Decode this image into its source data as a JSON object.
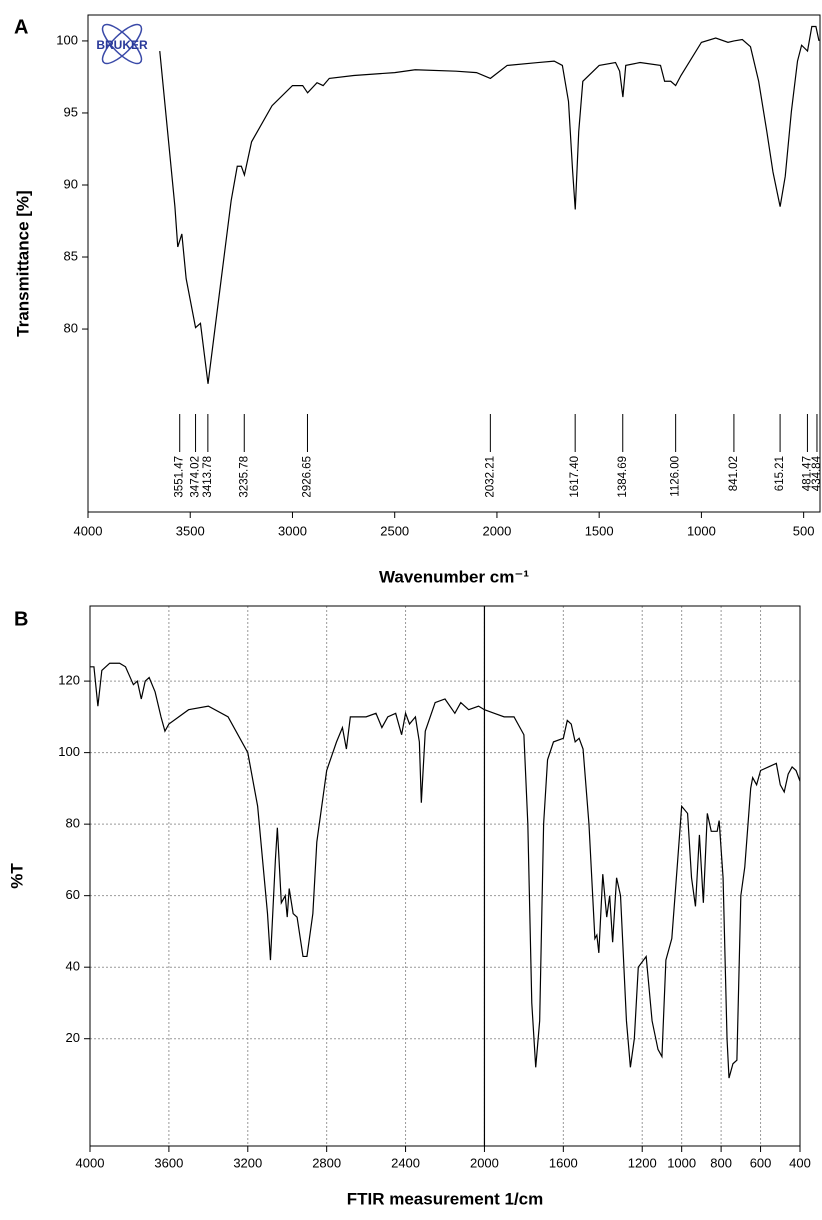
{
  "chart_data": [
    {
      "type": "line",
      "panel_label": "A",
      "logo": "BRUKER",
      "x_label": "Wavenumber cm⁻¹",
      "y_label": "Transmittance [%]",
      "xlim": [
        4000,
        420
      ],
      "ylim": [
        67.3,
        101.8
      ],
      "xticks": [
        4000,
        3500,
        3000,
        2500,
        2000,
        1500,
        1000,
        500
      ],
      "yticks": [
        80,
        85,
        90,
        95,
        100
      ],
      "grid": false,
      "peaks": [
        3551.47,
        3474.02,
        3413.78,
        3235.78,
        2926.65,
        2032.21,
        {
          "value": 1617.4,
          "label": "1617.40"
        },
        1384.69,
        {
          "value": 1126,
          "label": "1126.00"
        },
        841.02,
        615.21,
        481.47,
        434.84
      ],
      "series": [
        {
          "color": "#000000",
          "x": [
            3649,
            3575,
            3561,
            3541,
            3520,
            3474,
            3450,
            3413,
            3350,
            3300,
            3270,
            3250,
            3235,
            3200,
            3100,
            3000,
            2950,
            2926,
            2880,
            2850,
            2820,
            2700,
            2500,
            2400,
            2200,
            2100,
            2032,
            1950,
            1800,
            1720,
            1680,
            1650,
            1630,
            1617,
            1600,
            1580,
            1500,
            1420,
            1400,
            1384,
            1370,
            1300,
            1200,
            1180,
            1150,
            1126,
            1100,
            1000,
            930,
            870,
            841,
            800,
            760,
            720,
            680,
            650,
            615,
            590,
            560,
            530,
            510,
            481,
            460,
            440,
            425
          ],
          "values": [
            99.3,
            88.5,
            85.7,
            86.6,
            83.5,
            80.1,
            80.4,
            76.2,
            83.3,
            88.9,
            91.3,
            91.3,
            90.7,
            93.0,
            95.5,
            96.9,
            96.9,
            96.4,
            97.1,
            96.9,
            97.4,
            97.6,
            97.8,
            98.0,
            97.9,
            97.8,
            97.4,
            98.3,
            98.5,
            98.6,
            98.3,
            95.8,
            91.0,
            88.3,
            93.7,
            97.2,
            98.3,
            98.5,
            97.9,
            96.1,
            98.3,
            98.5,
            98.3,
            97.2,
            97.2,
            96.9,
            97.6,
            99.9,
            100.2,
            99.9,
            100.0,
            100.1,
            99.6,
            97.2,
            93.7,
            90.9,
            88.5,
            90.6,
            95.1,
            98.6,
            99.7,
            99.3,
            101.0,
            101.0,
            100.0
          ]
        }
      ]
    },
    {
      "type": "line",
      "panel_label": "B",
      "x_label": "FTIR measurement 1/cm",
      "y_label": "%T",
      "xlim": [
        4000,
        400
      ],
      "ylim": [
        -10,
        141
      ],
      "xticks": [
        4000,
        3600,
        3200,
        2800,
        2400,
        2000,
        1600,
        1200,
        1000,
        800,
        600,
        400
      ],
      "yticks": [
        20,
        40,
        60,
        80,
        100,
        120
      ],
      "grid": true,
      "reference_line": 2000,
      "series": [
        {
          "color": "#000000",
          "x": [
            4000,
            3980,
            3960,
            3940,
            3900,
            3850,
            3820,
            3780,
            3760,
            3740,
            3720,
            3700,
            3670,
            3640,
            3620,
            3600,
            3500,
            3400,
            3300,
            3200,
            3150,
            3100,
            3085,
            3060,
            3050,
            3030,
            3010,
            3000,
            2990,
            2970,
            2950,
            2920,
            2900,
            2870,
            2850,
            2800,
            2750,
            2720,
            2700,
            2680,
            2600,
            2550,
            2520,
            2490,
            2450,
            2420,
            2400,
            2380,
            2350,
            2330,
            2320,
            2300,
            2250,
            2200,
            2150,
            2120,
            2080,
            2030,
            2000,
            1950,
            1900,
            1850,
            1800,
            1780,
            1760,
            1740,
            1720,
            1700,
            1680,
            1650,
            1600,
            1580,
            1560,
            1540,
            1520,
            1500,
            1470,
            1440,
            1430,
            1420,
            1410,
            1400,
            1380,
            1365,
            1350,
            1330,
            1310,
            1280,
            1260,
            1240,
            1220,
            1180,
            1150,
            1120,
            1100,
            1080,
            1050,
            1020,
            1000,
            970,
            950,
            930,
            910,
            890,
            870,
            850,
            820,
            810,
            790,
            770,
            760,
            740,
            720,
            700,
            680,
            650,
            640,
            620,
            600,
            560,
            520,
            500,
            480,
            460,
            440,
            420,
            400
          ],
          "values": [
            124,
            124,
            113,
            123,
            125,
            125,
            124,
            119,
            120,
            115,
            120,
            121,
            117,
            110,
            106,
            108,
            112,
            113,
            110,
            100,
            85,
            55,
            42,
            70,
            79,
            58,
            60,
            54,
            62,
            55,
            54,
            43,
            43,
            55,
            75,
            95,
            103,
            107,
            101,
            110,
            110,
            111,
            107,
            110,
            111,
            105,
            111,
            108,
            110,
            103,
            86,
            106,
            114,
            115,
            111,
            114,
            112,
            113,
            112,
            111,
            110,
            110,
            105,
            80,
            30,
            12,
            25,
            80,
            98,
            103,
            104,
            109,
            108,
            103,
            104,
            101,
            80,
            48,
            49,
            44,
            55,
            66,
            54,
            60,
            47,
            65,
            60,
            25,
            12,
            20,
            40,
            43,
            25,
            17,
            15,
            42,
            48,
            70,
            85,
            83,
            65,
            57,
            77,
            58,
            83,
            78,
            78,
            81,
            65,
            20,
            9,
            13,
            14,
            60,
            68,
            90,
            93,
            91,
            95,
            96,
            97,
            91,
            89,
            94,
            96,
            95,
            92
          ]
        }
      ]
    }
  ]
}
